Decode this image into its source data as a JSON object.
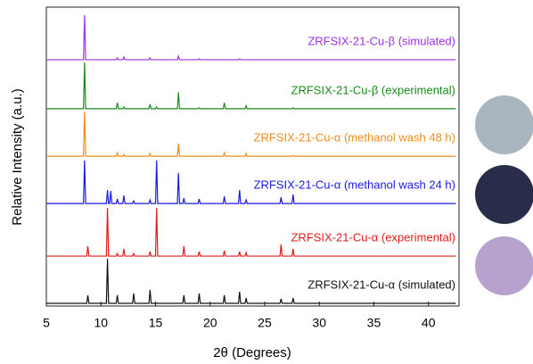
{
  "chart_data": {
    "type": "line",
    "xlabel": "2θ (Degrees)",
    "ylabel": "Relative Intensity (a.u.)",
    "xlim": [
      5,
      42.8
    ],
    "xticks": [
      5,
      10,
      15,
      20,
      25,
      30,
      35,
      40
    ],
    "ylim": [
      0,
      100
    ],
    "x": [
      5,
      8.4,
      8.5,
      8.6,
      8.7,
      8.8,
      8.9,
      10.5,
      10.6,
      10.7,
      10.8,
      10.9,
      11.0,
      11.4,
      11.5,
      11.6,
      12.0,
      12.1,
      12.2,
      12.9,
      13.0,
      13.1,
      14.4,
      14.5,
      14.6,
      15.0,
      15.1,
      15.2,
      17.0,
      17.1,
      17.2,
      17.5,
      17.6,
      17.7,
      18.9,
      19.0,
      19.1,
      21.2,
      21.3,
      21.4,
      22.6,
      22.7,
      22.8,
      23.2,
      23.3,
      23.4,
      26.4,
      26.5,
      26.6,
      27.5,
      27.6,
      27.7,
      42.5
    ],
    "series": [
      {
        "name": "ZRFSIX-21-Cu-β (simulated)",
        "color": "#9b30e0",
        "values": [
          82.4,
          82.4,
          97.3,
          82.4,
          82.4,
          82.4,
          82.4,
          82.4,
          82.4,
          82.4,
          82.4,
          82.4,
          82.4,
          82.4,
          83.0,
          82.4,
          82.4,
          83.3,
          82.4,
          82.4,
          82.4,
          82.4,
          82.4,
          83.0,
          82.4,
          82.4,
          82.4,
          82.4,
          82.4,
          83.6,
          82.4,
          82.4,
          82.4,
          82.4,
          82.4,
          82.7,
          82.4,
          82.4,
          82.4,
          82.4,
          82.4,
          82.7,
          82.4,
          82.4,
          82.4,
          82.4,
          82.4,
          82.4,
          82.4,
          82.4,
          82.4,
          82.4,
          82.4
        ]
      },
      {
        "name": "ZRFSIX-21-Cu-β (experimental)",
        "color": "#1a8a1a",
        "values": [
          66,
          66,
          81.5,
          66,
          66,
          66,
          66,
          66,
          66,
          66,
          66,
          66,
          66,
          66,
          68.0,
          66,
          66,
          66.6,
          66,
          66,
          66,
          66,
          66,
          67.5,
          66,
          66,
          66.6,
          66,
          66,
          71.5,
          66,
          66,
          66,
          66,
          66,
          66.3,
          66,
          66,
          68.0,
          66,
          66,
          66,
          66,
          66,
          67.0,
          66,
          66,
          66,
          66,
          66,
          66.3,
          66,
          66
        ]
      },
      {
        "name": "ZRFSIX-21-Cu-α (methanol wash 48 h)",
        "color": "#f08c1e",
        "values": [
          50.1,
          50.1,
          65,
          50.1,
          50.1,
          50.1,
          50.1,
          50.1,
          50.1,
          50.1,
          50.1,
          50.1,
          50.1,
          50.1,
          51.3,
          50.1,
          50.1,
          50.7,
          50.1,
          50.1,
          50.1,
          50.1,
          50.1,
          51.0,
          50.1,
          50.1,
          50.1,
          50.1,
          50.1,
          54.3,
          50.1,
          50.1,
          50.1,
          50.1,
          50.1,
          50.1,
          50.1,
          50.1,
          51.3,
          50.1,
          50.1,
          50.1,
          50.1,
          50.1,
          51.0,
          50.1,
          50.1,
          50.1,
          50.1,
          50.1,
          50.4,
          50.1,
          50.1
        ]
      },
      {
        "name": "ZRFSIX-21-Cu-α (methanol wash 24 h)",
        "color": "#1a1ae0",
        "values": [
          34.3,
          34.3,
          48.7,
          34.3,
          34.3,
          34.3,
          34.3,
          34.3,
          38.8,
          34.3,
          34.3,
          38.5,
          34.3,
          34.3,
          35.8,
          34.3,
          34.3,
          37.0,
          34.3,
          34.3,
          35.2,
          34.3,
          34.3,
          35.5,
          34.3,
          34.3,
          48.7,
          34.3,
          34.3,
          44.5,
          34.3,
          34.3,
          36.1,
          34.3,
          34.3,
          35.8,
          34.3,
          34.3,
          36.7,
          34.3,
          34.3,
          38.8,
          34.3,
          34.3,
          35.5,
          34.3,
          34.3,
          36.4,
          34.3,
          34.3,
          37.3,
          34.3,
          34.3
        ]
      },
      {
        "name": "ZRFSIX-21-Cu-α (experimental)",
        "color": "#e01a1a",
        "values": [
          16.7,
          16.7,
          16.7,
          16.7,
          16.7,
          20.0,
          16.7,
          16.7,
          32.8,
          16.7,
          16.7,
          16.7,
          16.7,
          16.7,
          17.6,
          16.7,
          16.7,
          19.1,
          16.7,
          16.7,
          17.6,
          16.7,
          16.7,
          18.2,
          16.7,
          16.7,
          32.8,
          16.7,
          16.7,
          16.7,
          16.7,
          16.7,
          20.0,
          16.7,
          16.7,
          18.2,
          16.7,
          16.7,
          18.5,
          16.7,
          16.7,
          18.2,
          16.7,
          16.7,
          17.9,
          16.7,
          16.7,
          20.6,
          16.7,
          16.7,
          19.1,
          16.7,
          16.7
        ]
      },
      {
        "name": "ZRFSIX-21-Cu-α (simulated)",
        "color": "#111111",
        "values": [
          0.9,
          0.9,
          0.9,
          0.9,
          0.9,
          3.6,
          0.9,
          0.9,
          15.8,
          0.9,
          0.9,
          0.9,
          0.9,
          0.9,
          3.6,
          0.9,
          0.9,
          0.9,
          0.9,
          0.9,
          4.2,
          0.9,
          0.9,
          5.4,
          0.9,
          0.9,
          0.9,
          0.9,
          0.9,
          0.9,
          0.9,
          0.9,
          3.6,
          0.9,
          0.9,
          4.2,
          0.9,
          0.9,
          3.6,
          0.9,
          0.9,
          4.8,
          0.9,
          0.9,
          2.7,
          0.9,
          0.9,
          2.4,
          0.9,
          0.9,
          2.7,
          0.9,
          0.9
        ]
      }
    ]
  }
}
